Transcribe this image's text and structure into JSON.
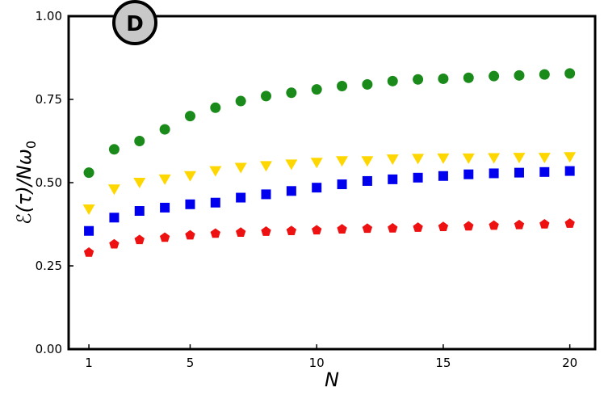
{
  "chart_data": {
    "type": "scatter",
    "panel_label": "D",
    "xlabel": "N",
    "ylabel": "ℰ(τ)/Nω",
    "ylabel_subscript": "0",
    "xlim": [
      0.2,
      21
    ],
    "ylim": [
      0,
      1
    ],
    "x_ticks": [
      1,
      5,
      10,
      15,
      20
    ],
    "y_ticks": [
      0.0,
      0.25,
      0.5,
      0.75,
      1.0
    ],
    "x_tick_labels": [
      "1",
      "5",
      "10",
      "15",
      "20"
    ],
    "y_tick_labels": [
      "0.00",
      "0.25",
      "0.50",
      "0.75",
      "1.00"
    ],
    "grid": false,
    "legend": "none",
    "x": [
      1,
      2,
      3,
      4,
      5,
      6,
      7,
      8,
      9,
      10,
      11,
      12,
      13,
      14,
      15,
      16,
      17,
      18,
      19,
      20
    ],
    "series": [
      {
        "marker": "circle",
        "color": "#1a8a1a",
        "values": [
          0.53,
          0.6,
          0.625,
          0.66,
          0.7,
          0.725,
          0.745,
          0.76,
          0.77,
          0.78,
          0.79,
          0.795,
          0.805,
          0.81,
          0.812,
          0.815,
          0.82,
          0.822,
          0.825,
          0.828
        ]
      },
      {
        "marker": "triangle-down",
        "color": "#ffd700",
        "values": [
          0.42,
          0.48,
          0.5,
          0.51,
          0.52,
          0.535,
          0.545,
          0.55,
          0.555,
          0.56,
          0.565,
          0.565,
          0.57,
          0.572,
          0.573,
          0.573,
          0.574,
          0.575,
          0.575,
          0.577
        ]
      },
      {
        "marker": "square",
        "color": "#0000ee",
        "values": [
          0.355,
          0.395,
          0.415,
          0.425,
          0.435,
          0.44,
          0.455,
          0.465,
          0.475,
          0.485,
          0.495,
          0.505,
          0.51,
          0.515,
          0.52,
          0.525,
          0.528,
          0.53,
          0.532,
          0.535
        ]
      },
      {
        "marker": "pentagon",
        "color": "#ee1111",
        "values": [
          0.29,
          0.315,
          0.328,
          0.335,
          0.342,
          0.347,
          0.35,
          0.353,
          0.355,
          0.357,
          0.36,
          0.362,
          0.363,
          0.365,
          0.367,
          0.369,
          0.371,
          0.373,
          0.375,
          0.377
        ]
      }
    ]
  }
}
